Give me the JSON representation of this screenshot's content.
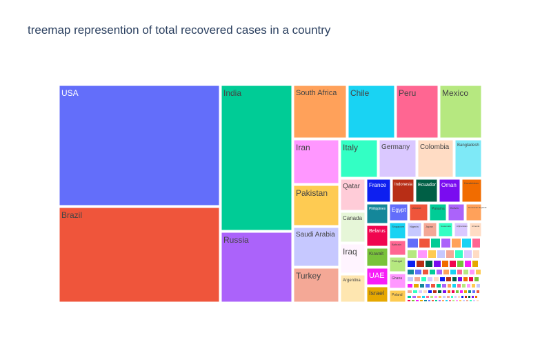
{
  "chart_data": {
    "type": "treemap",
    "title": "treemap represention of total recovered cases in a country",
    "items": [
      {
        "label": "USA",
        "value": 1700000,
        "color": "#636efa",
        "text_color": "#ffffff"
      },
      {
        "label": "Brazil",
        "value": 1510000,
        "color": "#ef553b",
        "text_color": "#444444"
      },
      {
        "label": "India",
        "value": 1140000,
        "color": "#00cc96",
        "text_color": "#444444"
      },
      {
        "label": "Russia",
        "value": 540000,
        "color": "#ab63fa",
        "text_color": "#444444"
      },
      {
        "label": "South Africa",
        "value": 256000,
        "color": "#ffa15a",
        "text_color": "#444444"
      },
      {
        "label": "Chile",
        "value": 255000,
        "color": "#19d3f3",
        "text_color": "#444444"
      },
      {
        "label": "Peru",
        "value": 251000,
        "color": "#ff6692",
        "text_color": "#444444"
      },
      {
        "label": "Mexico",
        "value": 246000,
        "color": "#b6e880",
        "text_color": "#444444"
      },
      {
        "label": "Iran",
        "value": 254000,
        "color": "#ff97ff",
        "text_color": "#444444"
      },
      {
        "label": "Pakistan",
        "value": 243000,
        "color": "#fecb52",
        "text_color": "#444444"
      },
      {
        "label": "Saudi Arabia",
        "value": 247000,
        "color": "#c6c8ff",
        "text_color": "#444444"
      },
      {
        "label": "Turkey",
        "value": 215000,
        "color": "#f4a896",
        "text_color": "#444444"
      },
      {
        "label": "Italy",
        "value": 199000,
        "color": "#33ffc4",
        "text_color": "#444444"
      },
      {
        "label": "Germany",
        "value": 194000,
        "color": "#dac8ff",
        "text_color": "#444444"
      },
      {
        "label": "Colombia",
        "value": 188000,
        "color": "#ffdcc4",
        "text_color": "#444444"
      },
      {
        "label": "Bangladesh",
        "value": 125000,
        "color": "#7ee9f7",
        "text_color": "#444444"
      },
      {
        "label": "Qatar",
        "value": 105000,
        "color": "#ffccd8",
        "text_color": "#444444"
      },
      {
        "label": "Canada",
        "value": 100000,
        "color": "#e6f6d8",
        "text_color": "#444444"
      },
      {
        "label": "Iraq",
        "value": 115000,
        "color": "#fff4ff",
        "text_color": "#444444"
      },
      {
        "label": "Argentina",
        "value": 100000,
        "color": "#fee6b0",
        "text_color": "#444444"
      },
      {
        "label": "France",
        "value": 80000,
        "color": "#0d1ff0",
        "text_color": "#ffffff"
      },
      {
        "label": "Indonesia",
        "value": 70000,
        "color": "#b82e16",
        "text_color": "#ffffff"
      },
      {
        "label": "Ecuador",
        "value": 60000,
        "color": "#005f45",
        "text_color": "#ffffff"
      },
      {
        "label": "Oman",
        "value": 58000,
        "color": "#7a0cf0",
        "text_color": "#ffffff"
      },
      {
        "label": "Kazakhstan",
        "value": 50000,
        "color": "#f16c00",
        "text_color": "#444444"
      },
      {
        "label": "Philippines",
        "value": 62000,
        "color": "#14879a",
        "text_color": "#ffffff"
      },
      {
        "label": "Egypt",
        "value": 60000,
        "color": "#636efa",
        "text_color": "#ffffff"
      },
      {
        "label": "Belarus",
        "value": 62000,
        "color": "#f0054f",
        "text_color": "#ffffff"
      },
      {
        "label": "Kuwait",
        "value": 55000,
        "color": "#79c23b",
        "text_color": "#444444"
      },
      {
        "label": "UAE",
        "value": 56000,
        "color": "#f71df7",
        "text_color": "#ffffff"
      },
      {
        "label": "Israel",
        "value": 52000,
        "color": "#e6a800",
        "text_color": "#444444"
      },
      {
        "label": "Ukraine",
        "value": 38000,
        "color": "#ef553b",
        "text_color": "#444444"
      },
      {
        "label": "Panama",
        "value": 37000,
        "color": "#00cc96",
        "text_color": "#444444"
      },
      {
        "label": "Bolivia",
        "value": 36000,
        "color": "#ab63fa",
        "text_color": "#444444"
      },
      {
        "label": "Dominican Republic",
        "value": 35000,
        "color": "#ffa15a",
        "text_color": "#444444"
      },
      {
        "label": "Singapore",
        "value": 45000,
        "color": "#19d3f3",
        "text_color": "#444444"
      },
      {
        "label": "Bahrain",
        "value": 38000,
        "color": "#ff6692",
        "text_color": "#444444"
      },
      {
        "label": "Portugal",
        "value": 36000,
        "color": "#b6e880",
        "text_color": "#444444"
      },
      {
        "label": "Ghana",
        "value": 33000,
        "color": "#ff97ff",
        "text_color": "#444444"
      },
      {
        "label": "Poland",
        "value": 32000,
        "color": "#fecb52",
        "text_color": "#444444"
      },
      {
        "label": "Nigeria",
        "value": 28000,
        "color": "#c6c8ff",
        "text_color": "#444444"
      },
      {
        "label": "Japan",
        "value": 28000,
        "color": "#f4a896",
        "text_color": "#444444"
      },
      {
        "label": "Guatemala",
        "value": 27000,
        "color": "#33ffc4",
        "text_color": "#444444"
      },
      {
        "label": "Afghanistan",
        "value": 27000,
        "color": "#dac8ff",
        "text_color": "#444444"
      },
      {
        "label": "Armenia",
        "value": 26000,
        "color": "#ffdcc4",
        "text_color": "#444444"
      }
    ]
  }
}
